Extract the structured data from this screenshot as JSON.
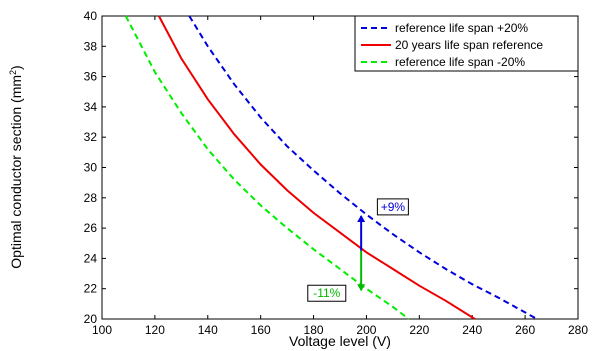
{
  "chart_data": {
    "type": "line",
    "title": "",
    "xlabel": "Voltage level (V)",
    "ylabel_main": "Optimal conductor section (mm",
    "ylabel_sup": "2",
    "ylabel_end": ")",
    "xlim": [
      100,
      280
    ],
    "ylim": [
      20,
      40
    ],
    "xticks": [
      "100",
      "120",
      "140",
      "160",
      "180",
      "200",
      "220",
      "240",
      "260",
      "280"
    ],
    "yticks": [
      "20",
      "22",
      "24",
      "26",
      "28",
      "30",
      "32",
      "34",
      "36",
      "38",
      "40"
    ],
    "grid": false,
    "legend_position": "top-right",
    "series": [
      {
        "name": "reference life span +20%",
        "color": "#0000dd",
        "style": "dashed",
        "x": [
          133,
          140,
          150,
          160,
          170,
          180,
          190,
          200,
          210,
          220,
          230,
          240,
          250,
          264.5
        ],
        "y": [
          40,
          38.0,
          35.5,
          33.3,
          31.4,
          29.8,
          28.3,
          26.9,
          25.6,
          24.4,
          23.3,
          22.3,
          21.4,
          20
        ]
      },
      {
        "name": "20 years life span reference",
        "color": "#ee0000",
        "style": "solid",
        "x": [
          121.5,
          130,
          140,
          150,
          160,
          170,
          180,
          190,
          200,
          210,
          220,
          230,
          241
        ],
        "y": [
          40,
          37.2,
          34.5,
          32.2,
          30.2,
          28.5,
          27.0,
          25.7,
          24.4,
          23.3,
          22.2,
          21.2,
          20
        ]
      },
      {
        "name": "reference life span -20%",
        "color": "#00ee00",
        "style": "dashed",
        "x": [
          109,
          120,
          130,
          140,
          150,
          160,
          170,
          180,
          190,
          200,
          210,
          216
        ],
        "y": [
          40,
          36.3,
          33.6,
          31.2,
          29.2,
          27.5,
          26.0,
          24.6,
          23.3,
          22.0,
          20.8,
          20
        ]
      }
    ],
    "annotations": [
      {
        "text": "+9%",
        "color": "#0000dd",
        "arrow_x": 198,
        "arrow_from_y": 24.5,
        "arrow_to_y": 26.8,
        "label_x": 210,
        "label_y": 27.4
      },
      {
        "text": "-11%",
        "color": "#00bb00",
        "arrow_x": 198,
        "arrow_from_y": 24.5,
        "arrow_to_y": 21.9,
        "label_x": 185,
        "label_y": 21.7
      }
    ]
  }
}
